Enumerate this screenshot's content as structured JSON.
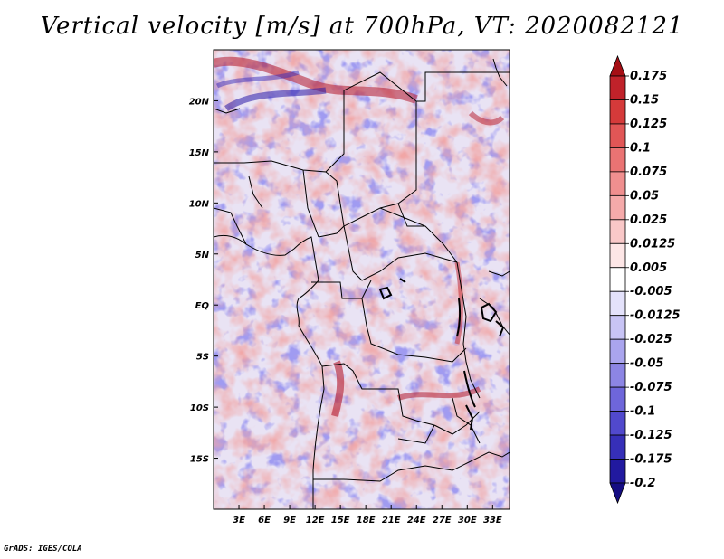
{
  "title": "Vertical velocity [m/s] at 700hPa, VT: 2020082121",
  "map": {
    "lat_labels": [
      "20N",
      "15N",
      "10N",
      "5N",
      "EQ",
      "5S",
      "10S",
      "15S"
    ],
    "lat_values": [
      20,
      15,
      10,
      5,
      0,
      -5,
      -10,
      -15
    ],
    "lon_labels": [
      "3E",
      "6E",
      "9E",
      "12E",
      "15E",
      "18E",
      "21E",
      "24E",
      "27E",
      "30E",
      "33E"
    ],
    "lon_values": [
      3,
      6,
      9,
      12,
      15,
      18,
      21,
      24,
      27,
      30,
      33
    ],
    "lon_range": [
      0,
      35
    ],
    "lat_range": [
      -20,
      25
    ]
  },
  "colorbar": {
    "levels": [
      "0.175",
      "0.15",
      "0.125",
      "0.1",
      "0.075",
      "0.05",
      "0.025",
      "0.0125",
      "0.005",
      "-0.005",
      "-0.0125",
      "-0.025",
      "-0.05",
      "-0.075",
      "-0.1",
      "-0.125",
      "-0.175",
      "-0.2"
    ],
    "colors": [
      "#a50f15",
      "#c0222a",
      "#d53a3a",
      "#e15656",
      "#ea7373",
      "#f08f8f",
      "#f5aaaa",
      "#f9c8c8",
      "#fde6e6",
      "#ffffff",
      "#e4e2fb",
      "#c8c4f5",
      "#aaa5ee",
      "#8c85e4",
      "#6e66da",
      "#5149cd",
      "#362fb8",
      "#21199f",
      "#150d82"
    ]
  },
  "footer": "GrADS: IGES/COLA"
}
